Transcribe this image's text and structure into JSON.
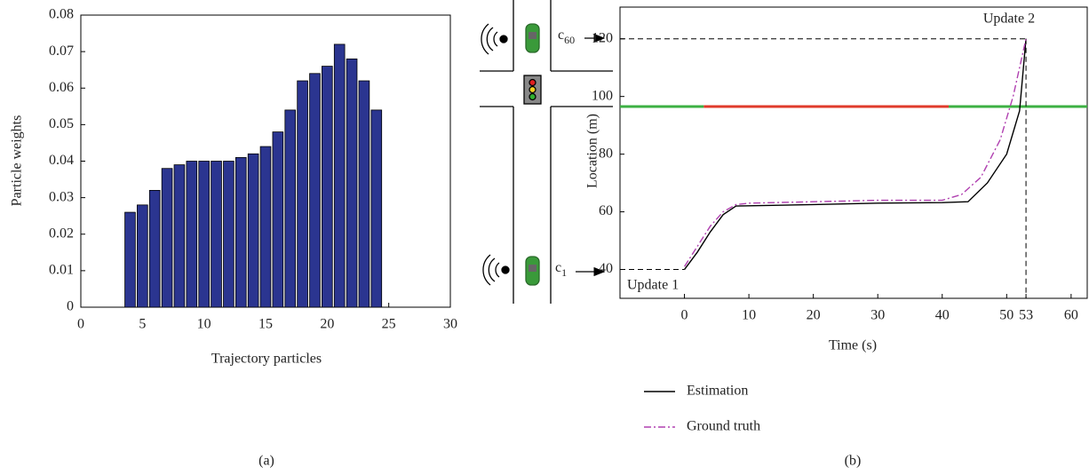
{
  "chart_data": [
    {
      "type": "bar",
      "caption": "(a)",
      "x_label": "Trajectory particles",
      "y_label": "Particle weights",
      "x": [
        4,
        5,
        6,
        7,
        8,
        9,
        10,
        11,
        12,
        13,
        14,
        15,
        16,
        17,
        18,
        19,
        20,
        21,
        22,
        23,
        24
      ],
      "values": [
        0.026,
        0.028,
        0.032,
        0.038,
        0.039,
        0.04,
        0.04,
        0.04,
        0.04,
        0.041,
        0.042,
        0.044,
        0.048,
        0.054,
        0.062,
        0.064,
        0.066,
        0.072,
        0.068,
        0.062,
        0.054
      ],
      "color": "#2b3590",
      "xlim": [
        0,
        30
      ],
      "xticks": [
        0,
        5,
        10,
        15,
        20,
        25,
        30
      ],
      "ylim": [
        0,
        0.08
      ],
      "yticks": [
        0,
        0.01,
        0.02,
        0.03,
        0.04,
        0.05,
        0.06,
        0.07,
        0.08
      ]
    },
    {
      "type": "line",
      "caption": "(b)",
      "x_label": "Time (s)",
      "y_label": "Location (m)",
      "series": [
        {
          "name": "Estimation",
          "color": "#000000",
          "dash": "solid",
          "x": [
            0,
            2,
            4,
            6,
            8,
            20,
            30,
            40,
            44,
            47,
            50,
            52,
            53
          ],
          "values": [
            40,
            46,
            53,
            59,
            62,
            62.5,
            63,
            63.2,
            63.5,
            70,
            80,
            95,
            120
          ]
        },
        {
          "name": "Ground truth",
          "color": "#b040b0",
          "dash": "dashdot",
          "x": [
            0,
            2,
            4,
            6,
            8,
            10,
            20,
            30,
            40,
            43,
            46,
            49,
            51,
            53
          ],
          "values": [
            41,
            48,
            55,
            60,
            62.5,
            63,
            63.5,
            64,
            64,
            66,
            72,
            85,
            100,
            120
          ]
        }
      ],
      "signal": {
        "y": 96.5,
        "segments": [
          {
            "color": "#3cb043",
            "x": [
              -10,
              3
            ]
          },
          {
            "color": "#e03a2a",
            "x": [
              3,
              41
            ]
          },
          {
            "color": "#3cb043",
            "x": [
              41,
              62.5
            ]
          }
        ]
      },
      "updates": [
        {
          "label": "Update 1",
          "x": 0,
          "y": 40
        },
        {
          "label": "Update 2",
          "x": 53,
          "y": 120
        }
      ],
      "xlim": [
        -10,
        62.5
      ],
      "xticks": [
        0,
        10,
        20,
        30,
        40,
        50,
        53,
        60
      ],
      "ylim": [
        30,
        131
      ],
      "yticks": [
        40,
        60,
        80,
        100,
        120
      ]
    }
  ],
  "diagram": {
    "vehicle_labels": [
      {
        "base": "c",
        "subscript": "60"
      },
      {
        "base": "c",
        "subscript": "1"
      }
    ]
  }
}
